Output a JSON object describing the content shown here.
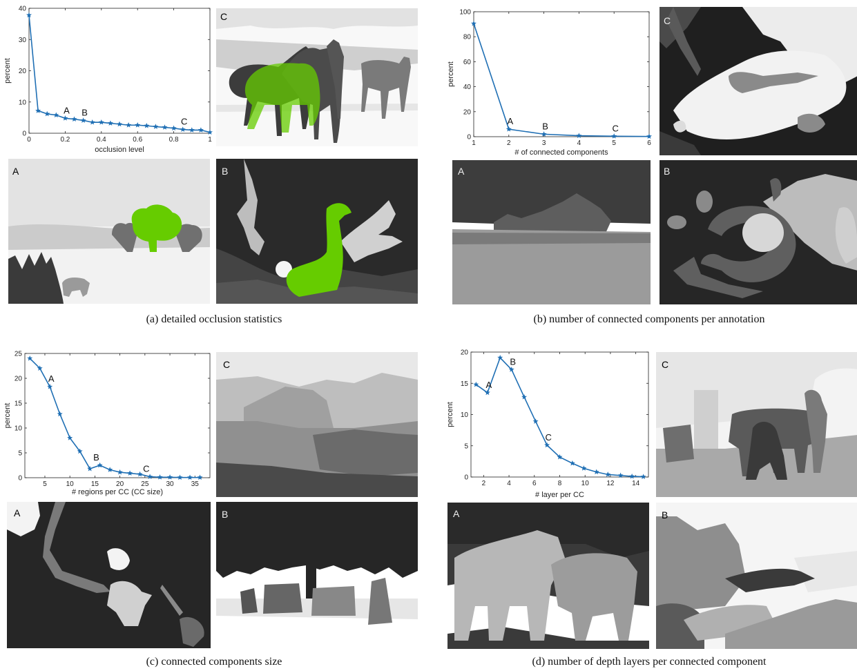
{
  "captions": {
    "a": "(a) detailed occlusion statistics",
    "b": "(b) number of connected components per annotation",
    "c": "(c) connected components size",
    "d": "(d) number of depth layers per connected component"
  },
  "panel_letters": {
    "A": "A",
    "B": "B",
    "C": "C"
  },
  "colors": {
    "line": "#1f6fb4",
    "highlight": "#66cc00"
  },
  "chart_data": [
    {
      "type": "line",
      "title": "",
      "xlabel": "occlusion level",
      "ylabel": "percent",
      "xlim": [
        0,
        1
      ],
      "ylim": [
        0,
        40
      ],
      "xticks": [
        0,
        0.2,
        0.4,
        0.6,
        0.8,
        1
      ],
      "xtick_labels": [
        "0",
        "0.2",
        "0.4",
        "0.6",
        "0.8",
        "1"
      ],
      "yticks": [
        0,
        10,
        20,
        30,
        40
      ],
      "ytick_labels": [
        "0",
        "10",
        "20",
        "30",
        "40"
      ],
      "x": [
        0.0,
        0.05,
        0.1,
        0.15,
        0.2,
        0.25,
        0.3,
        0.35,
        0.4,
        0.45,
        0.5,
        0.55,
        0.6,
        0.65,
        0.7,
        0.75,
        0.8,
        0.85,
        0.9,
        0.95,
        1.0
      ],
      "y": [
        37.8,
        7.2,
        6.2,
        5.8,
        4.8,
        4.5,
        4.1,
        3.5,
        3.5,
        3.2,
        2.9,
        2.6,
        2.6,
        2.4,
        2.1,
        1.9,
        1.6,
        1.2,
        1.0,
        1.0,
        0.3
      ],
      "annotations": [
        {
          "text": "A",
          "x": 0.2,
          "y": 4.8
        },
        {
          "text": "B",
          "x": 0.3,
          "y": 4.1
        },
        {
          "text": "C",
          "x": 0.85,
          "y": 1.2
        }
      ]
    },
    {
      "type": "line",
      "title": "",
      "xlabel": "# of connected components",
      "ylabel": "percent",
      "xlim": [
        1,
        6
      ],
      "ylim": [
        0,
        100
      ],
      "xticks": [
        1,
        2,
        3,
        4,
        5,
        6
      ],
      "xtick_labels": [
        "1",
        "2",
        "3",
        "4",
        "5",
        "6"
      ],
      "yticks": [
        0,
        20,
        40,
        60,
        80,
        100
      ],
      "ytick_labels": [
        "0",
        "20",
        "40",
        "60",
        "80",
        "100"
      ],
      "x": [
        1,
        2,
        3,
        4,
        5,
        6
      ],
      "y": [
        90.5,
        6.0,
        2.0,
        0.8,
        0.4,
        0.2
      ],
      "annotations": [
        {
          "text": "A",
          "x": 2,
          "y": 6.0
        },
        {
          "text": "B",
          "x": 3,
          "y": 2.0
        },
        {
          "text": "C",
          "x": 5,
          "y": 0.4
        }
      ]
    },
    {
      "type": "line",
      "title": "",
      "xlabel": "# regions per CC (CC size)",
      "ylabel": "percent",
      "xlim": [
        1,
        38
      ],
      "ylim": [
        0,
        25
      ],
      "xticks": [
        5,
        10,
        15,
        20,
        25,
        30,
        35
      ],
      "xtick_labels": [
        "5",
        "10",
        "15",
        "20",
        "25",
        "30",
        "35"
      ],
      "yticks": [
        0,
        5,
        10,
        15,
        20,
        25
      ],
      "ytick_labels": [
        "0",
        "5",
        "10",
        "15",
        "20",
        "25"
      ],
      "x": [
        2,
        4,
        6,
        8,
        10,
        12,
        14,
        16,
        18,
        20,
        22,
        24,
        26,
        28,
        30,
        32,
        34,
        36
      ],
      "y": [
        24.0,
        22.0,
        18.3,
        12.8,
        8.0,
        5.3,
        1.8,
        2.5,
        1.6,
        1.1,
        0.9,
        0.7,
        0.2,
        0.1,
        0.1,
        0.05,
        0.05,
        0.05
      ],
      "annotations": [
        {
          "text": "A",
          "x": 6,
          "y": 18.3
        },
        {
          "text": "B",
          "x": 15,
          "y": 2.5
        },
        {
          "text": "C",
          "x": 25,
          "y": 0.2
        }
      ]
    },
    {
      "type": "line",
      "title": "",
      "xlabel": "# layer per CC",
      "ylabel": "percent",
      "xlim": [
        1,
        15
      ],
      "ylim": [
        0,
        20
      ],
      "xticks": [
        2,
        4,
        6,
        8,
        10,
        12,
        14
      ],
      "xtick_labels": [
        "2",
        "4",
        "6",
        "8",
        "10",
        "12",
        "14"
      ],
      "yticks": [
        0,
        5,
        10,
        15,
        20
      ],
      "ytick_labels": [
        "0",
        "5",
        "10",
        "15",
        "20"
      ],
      "x": [
        1.4,
        2.3,
        3.3,
        4.2,
        5.2,
        6.1,
        7.0,
        8.0,
        9.0,
        9.9,
        10.9,
        11.8,
        12.8,
        13.7,
        14.6
      ],
      "y": [
        14.8,
        13.5,
        19.1,
        17.2,
        12.8,
        8.9,
        5.1,
        3.2,
        2.2,
        1.4,
        0.8,
        0.4,
        0.25,
        0.1,
        0.05
      ],
      "annotations": [
        {
          "text": "A",
          "x": 2.3,
          "y": 13.5
        },
        {
          "text": "B",
          "x": 4.2,
          "y": 17.2
        },
        {
          "text": "C",
          "x": 7.0,
          "y": 5.1
        }
      ]
    }
  ]
}
